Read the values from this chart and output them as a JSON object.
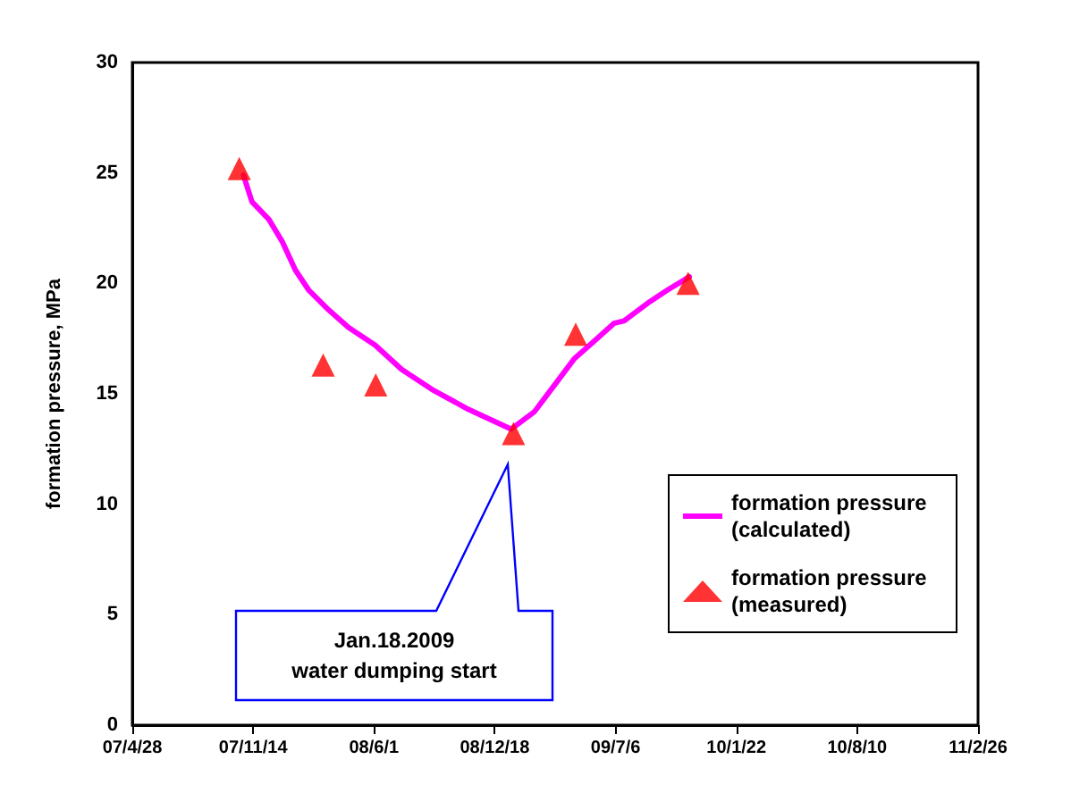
{
  "chart_data": {
    "type": "line",
    "ylabel": "formation pressure, MPa",
    "series": [
      {
        "name": "formation pressure (calculated)",
        "color": "#ff00ff",
        "marker": "none",
        "line_style": "solid",
        "x": [
          "2007-10-29",
          "2007-11-12",
          "2007-12-10",
          "2008-01-01",
          "2008-01-23",
          "2008-02-14",
          "2008-03-18",
          "2008-04-20",
          "2008-06-03",
          "2008-07-17",
          "2008-09-05",
          "2008-11-04",
          "2009-01-14",
          "2009-02-22",
          "2009-03-27",
          "2009-04-29",
          "2009-06-01",
          "2009-07-04",
          "2009-07-20",
          "2009-08-28",
          "2009-09-30",
          "2009-11-05"
        ],
        "values": [
          24.9,
          23.7,
          22.9,
          21.9,
          20.6,
          19.7,
          18.8,
          18.0,
          17.2,
          16.1,
          15.2,
          14.3,
          13.4,
          14.2,
          15.4,
          16.6,
          17.4,
          18.2,
          18.3,
          19.1,
          19.7,
          20.3
        ]
      },
      {
        "name": "formation pressure (measured)",
        "type": "scatter",
        "color": "#ff0000",
        "marker": "triangle",
        "x": [
          "2007-10-22",
          "2008-03-09",
          "2008-06-04",
          "2009-01-18",
          "2009-05-01",
          "2009-11-03"
        ],
        "values": [
          25.2,
          16.3,
          15.4,
          13.2,
          17.7,
          20.0
        ]
      }
    ],
    "xlim": [
      "2007-04-28",
      "2011-02-26"
    ],
    "xticks": [
      {
        "value": "2007-04-28",
        "label": "07/4/28"
      },
      {
        "value": "2007-11-14",
        "label": "07/11/14"
      },
      {
        "value": "2008-06-01",
        "label": "08/6/1"
      },
      {
        "value": "2008-12-18",
        "label": "08/12/18"
      },
      {
        "value": "2009-07-06",
        "label": "09/7/6"
      },
      {
        "value": "2010-01-22",
        "label": "10/1/22"
      },
      {
        "value": "2010-08-10",
        "label": "10/8/10"
      },
      {
        "value": "2011-02-26",
        "label": "11/2/26"
      }
    ],
    "ylim": [
      0,
      30
    ],
    "yticks": [
      0,
      5,
      10,
      15,
      20,
      25,
      30
    ],
    "grid": false,
    "legend": "right",
    "annotations": [
      "Jan.18.2009\nwater dumping start"
    ]
  }
}
